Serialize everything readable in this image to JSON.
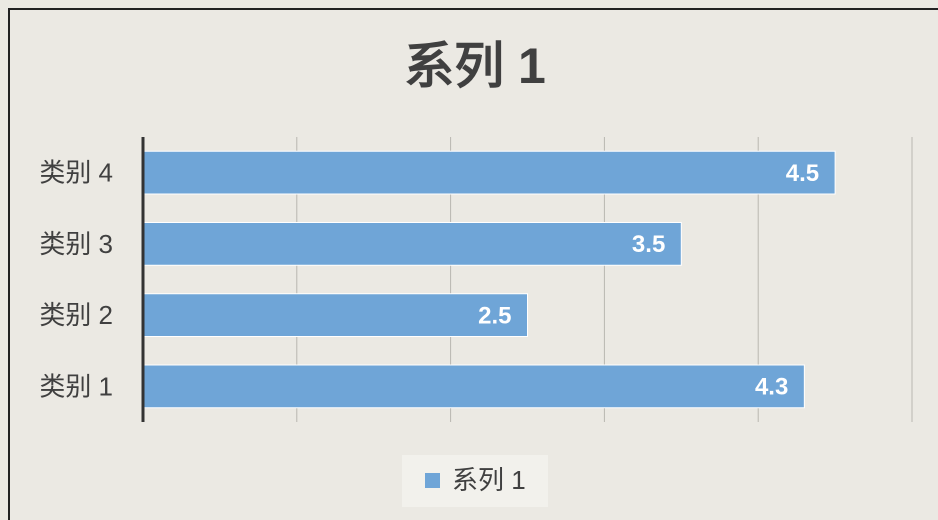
{
  "chart_data": {
    "type": "bar",
    "orientation": "horizontal",
    "title": "系列 1",
    "categories": [
      "类别 1",
      "类别 2",
      "类别 3",
      "类别 4"
    ],
    "series": [
      {
        "name": "系列 1",
        "color": "#6fa5d7",
        "values": [
          4.3,
          2.5,
          3.5,
          4.5
        ]
      }
    ],
    "xlim": [
      0,
      5
    ],
    "xticks": [
      0,
      1,
      2,
      3,
      4,
      5
    ],
    "grid": true,
    "legend": "bottom"
  }
}
